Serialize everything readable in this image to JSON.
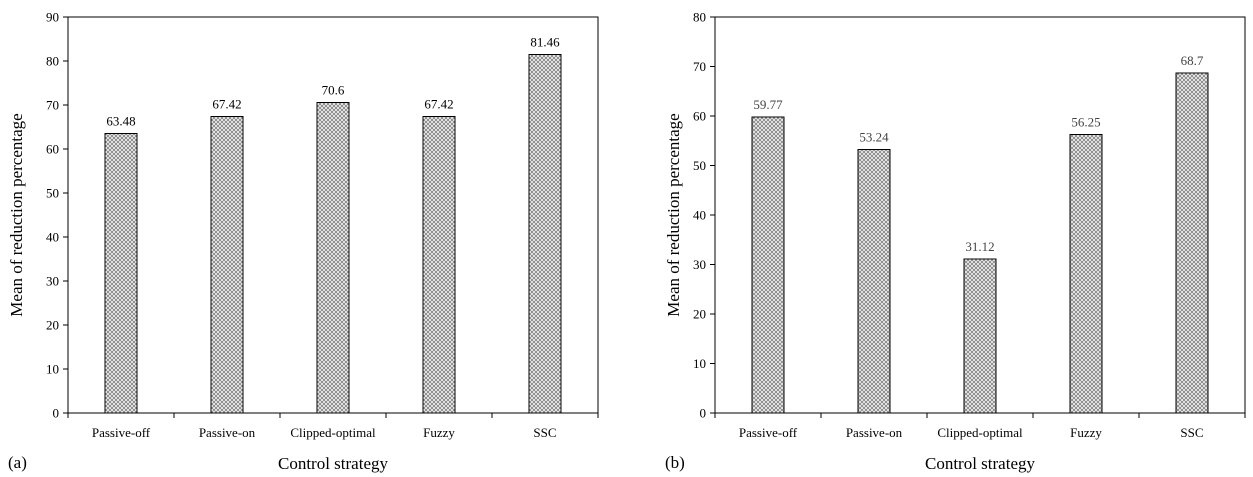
{
  "chart_data": [
    {
      "type": "bar",
      "panel_label": "(a)",
      "categories": [
        "Passive-off",
        "Passive-on",
        "Clipped-optimal",
        "Fuzzy",
        "SSC"
      ],
      "values": [
        63.48,
        67.42,
        70.6,
        67.42,
        81.46
      ],
      "data_labels": [
        "63.48",
        "67.42",
        "70.6",
        "67.42",
        "81.46"
      ],
      "xlabel": "Control strategy",
      "ylabel": "Mean of reduction percentage",
      "ylim": [
        0,
        90
      ],
      "yticks": [
        0,
        10,
        20,
        30,
        40,
        50,
        60,
        70,
        80,
        90
      ],
      "grid": false,
      "bar_fill": "crosshatch",
      "bar_color": "#8a8a8a"
    },
    {
      "type": "bar",
      "panel_label": "(b)",
      "categories": [
        "Passive-off",
        "Passive-on",
        "Clipped-optimal",
        "Fuzzy",
        "SSC"
      ],
      "values": [
        59.77,
        53.24,
        31.12,
        56.25,
        68.7
      ],
      "data_labels": [
        "59.77",
        "53.24",
        "31.12",
        "56.25",
        "68.7"
      ],
      "xlabel": "Control strategy",
      "ylabel": "Mean of reduction percentage",
      "ylim": [
        0,
        80
      ],
      "yticks": [
        0,
        10,
        20,
        30,
        40,
        50,
        60,
        70,
        80
      ],
      "grid": false,
      "bar_fill": "crosshatch",
      "bar_color": "#8a8a8a"
    }
  ]
}
